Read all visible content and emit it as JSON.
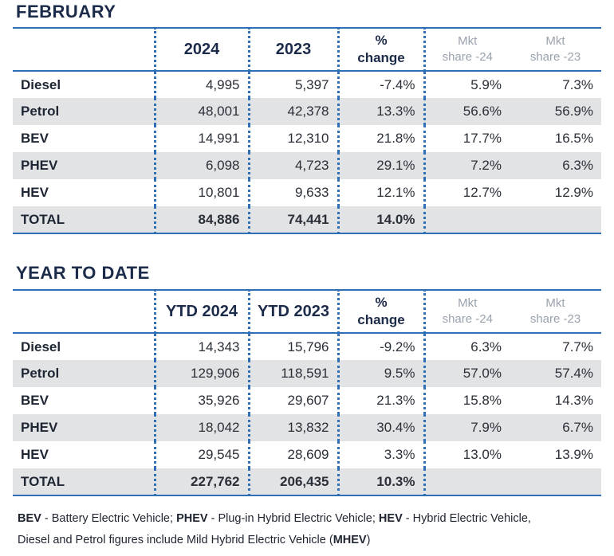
{
  "february": {
    "title": "FEBRUARY",
    "headers": [
      "",
      "2024",
      "2023",
      "%\nchange",
      "Mkt\nshare -24",
      "Mkt\nshare -23"
    ],
    "rows": [
      {
        "label": "Diesel",
        "v2024": "4,995",
        "v2023": "5,397",
        "change": "-7.4%",
        "share24": "5.9%",
        "share23": "7.3%"
      },
      {
        "label": "Petrol",
        "v2024": "48,001",
        "v2023": "42,378",
        "change": "13.3%",
        "share24": "56.6%",
        "share23": "56.9%"
      },
      {
        "label": "BEV",
        "v2024": "14,991",
        "v2023": "12,310",
        "change": "21.8%",
        "share24": "17.7%",
        "share23": "16.5%"
      },
      {
        "label": "PHEV",
        "v2024": "6,098",
        "v2023": "4,723",
        "change": "29.1%",
        "share24": "7.2%",
        "share23": "6.3%"
      },
      {
        "label": "HEV",
        "v2024": "10,801",
        "v2023": "9,633",
        "change": "12.1%",
        "share24": "12.7%",
        "share23": "12.9%"
      }
    ],
    "total": {
      "label": "TOTAL",
      "v2024": "84,886",
      "v2023": "74,441",
      "change": "14.0%",
      "share24": "",
      "share23": ""
    }
  },
  "ytd": {
    "title": "YEAR TO DATE",
    "headers": [
      "",
      "YTD 2024",
      "YTD 2023",
      "%\nchange",
      "Mkt\nshare -24",
      "Mkt\nshare -23"
    ],
    "rows": [
      {
        "label": "Diesel",
        "v2024": "14,343",
        "v2023": "15,796",
        "change": "-9.2%",
        "share24": "6.3%",
        "share23": "7.7%"
      },
      {
        "label": "Petrol",
        "v2024": "129,906",
        "v2023": "118,591",
        "change": "9.5%",
        "share24": "57.0%",
        "share23": "57.4%"
      },
      {
        "label": "BEV",
        "v2024": "35,926",
        "v2023": "29,607",
        "change": "21.3%",
        "share24": "15.8%",
        "share23": "14.3%"
      },
      {
        "label": "PHEV",
        "v2024": "18,042",
        "v2023": "13,832",
        "change": "30.4%",
        "share24": "7.9%",
        "share23": "6.7%"
      },
      {
        "label": "HEV",
        "v2024": "29,545",
        "v2023": "28,609",
        "change": "3.3%",
        "share24": "13.0%",
        "share23": "13.9%"
      }
    ],
    "total": {
      "label": "TOTAL",
      "v2024": "227,762",
      "v2023": "206,435",
      "change": "10.3%",
      "share24": "",
      "share23": ""
    }
  },
  "footnote": {
    "line1": [
      {
        "b": "BEV",
        "t": " - Battery Electric Vehicle; "
      },
      {
        "b": "PHEV",
        "t": " - Plug-in Hybrid Electric Vehicle; "
      },
      {
        "b": "HEV",
        "t": " - Hybrid Electric Vehicle,"
      }
    ],
    "line2": [
      {
        "b": "",
        "t": "Diesel and Petrol figures include Mild Hybrid Electric Vehicle ("
      },
      {
        "b": "MHEV",
        "t": ")"
      }
    ]
  },
  "colors": {
    "accent": "#2f6fb6",
    "title": "#1d2b4a",
    "shade": "#e2e3e5",
    "muted": "#9aa2ae"
  }
}
